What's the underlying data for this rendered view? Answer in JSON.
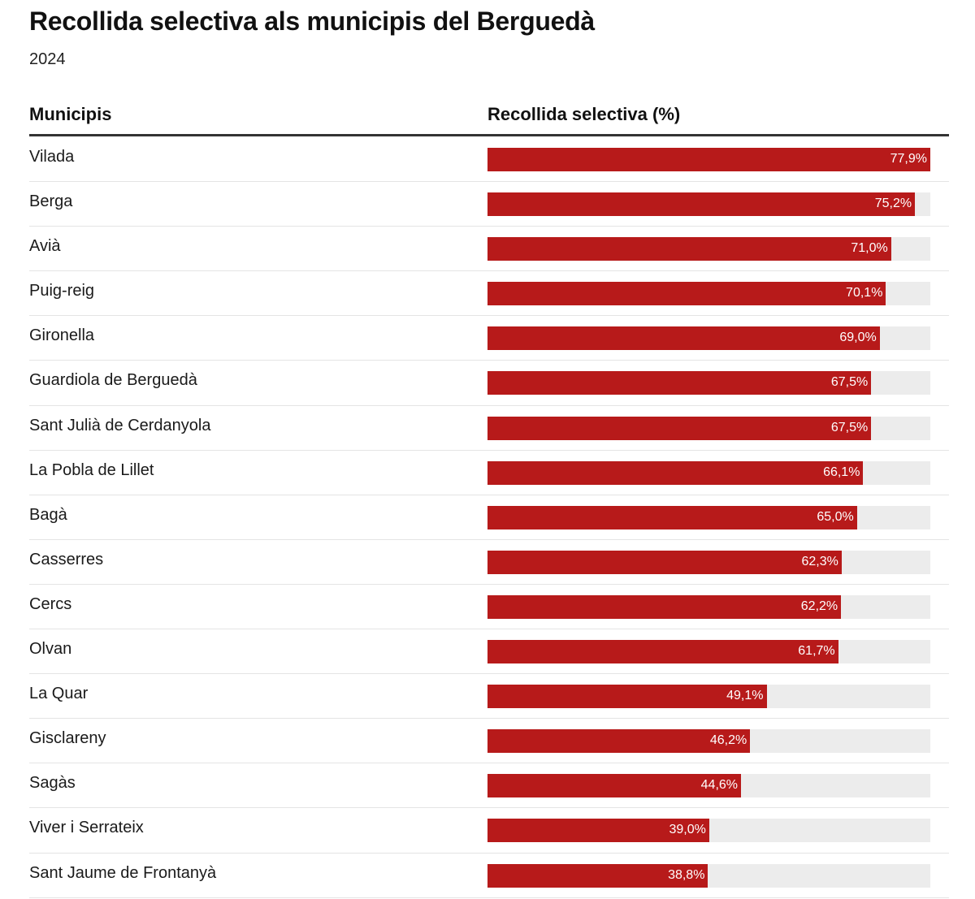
{
  "title": "Recollida selectiva als municipis del Berguedà",
  "subtitle": "2024",
  "table": {
    "col_municipis": "Municipis",
    "col_recollida": "Recollida selectiva (%)"
  },
  "colors": {
    "bar": "#b71a1a",
    "track": "#ececec"
  },
  "chart_data": {
    "type": "bar",
    "orientation": "horizontal",
    "title": "Recollida selectiva als municipis del Berguedà",
    "subtitle": "2024",
    "xlabel": "Recollida selectiva (%)",
    "ylabel": "Municipis",
    "xlim": [
      0,
      77.9
    ],
    "categories": [
      "Vilada",
      "Berga",
      "Avià",
      "Puig-reig",
      "Gironella",
      "Guardiola de Berguedà",
      "Sant Julià de Cerdanyola",
      "La Pobla de Lillet",
      "Bagà",
      "Casserres",
      "Cercs",
      "Olvan",
      "La Quar",
      "Gisclareny",
      "Sagàs",
      "Viver i Serrateix",
      "Sant Jaume de Frontanyà"
    ],
    "values": [
      77.9,
      75.2,
      71.0,
      70.1,
      69.0,
      67.5,
      67.5,
      66.1,
      65.0,
      62.3,
      62.2,
      61.7,
      49.1,
      46.2,
      44.6,
      39.0,
      38.8
    ],
    "labels": [
      "77,9%",
      "75,2%",
      "71,0%",
      "70,1%",
      "69,0%",
      "67,5%",
      "67,5%",
      "66,1%",
      "65,0%",
      "62,3%",
      "62,2%",
      "61,7%",
      "49,1%",
      "46,2%",
      "44,6%",
      "39,0%",
      "38,8%"
    ]
  }
}
